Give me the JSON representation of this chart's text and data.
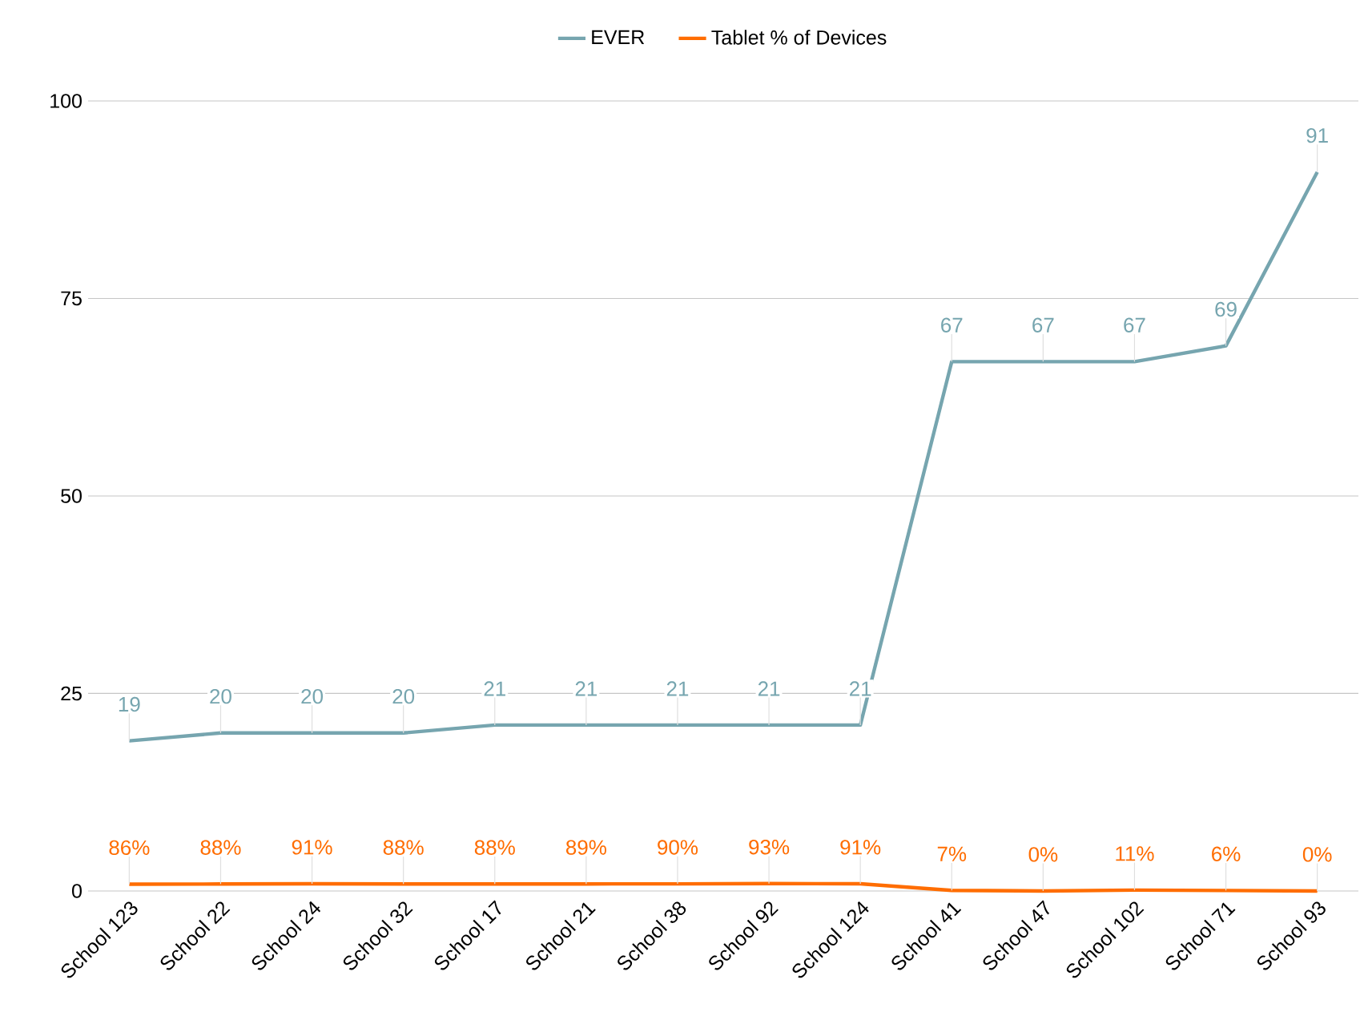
{
  "chart_data": {
    "type": "line",
    "categories": [
      "School 123",
      "School 22",
      "School 24",
      "School 32",
      "School 17",
      "School 21",
      "School 38",
      "School 92",
      "School 124",
      "School 41",
      "School 47",
      "School 102",
      "School 71",
      "School 93"
    ],
    "series": [
      {
        "name": "EVER",
        "color": "#76a5af",
        "values": [
          19,
          20,
          20,
          20,
          21,
          21,
          21,
          21,
          21,
          67,
          67,
          67,
          69,
          91
        ],
        "value_labels": [
          "19",
          "20",
          "20",
          "20",
          "21",
          "21",
          "21",
          "21",
          "21",
          "67",
          "67",
          "67",
          "69",
          "91"
        ]
      },
      {
        "name": "Tablet % of Devices",
        "color": "#ff6d01",
        "values": [
          0.86,
          0.88,
          0.91,
          0.88,
          0.88,
          0.89,
          0.9,
          0.93,
          0.91,
          0.07,
          0,
          0.11,
          0.06,
          0
        ],
        "value_labels": [
          "86%",
          "88%",
          "91%",
          "88%",
          "88%",
          "89%",
          "90%",
          "93%",
          "91%",
          "7%",
          "0%",
          "11%",
          "6%",
          "0%"
        ]
      }
    ],
    "ylim": [
      0,
      100
    ],
    "yticks": [
      0,
      25,
      50,
      75,
      100
    ],
    "grid": "y",
    "legend": "top",
    "marker": "none",
    "line_style": "solid"
  }
}
